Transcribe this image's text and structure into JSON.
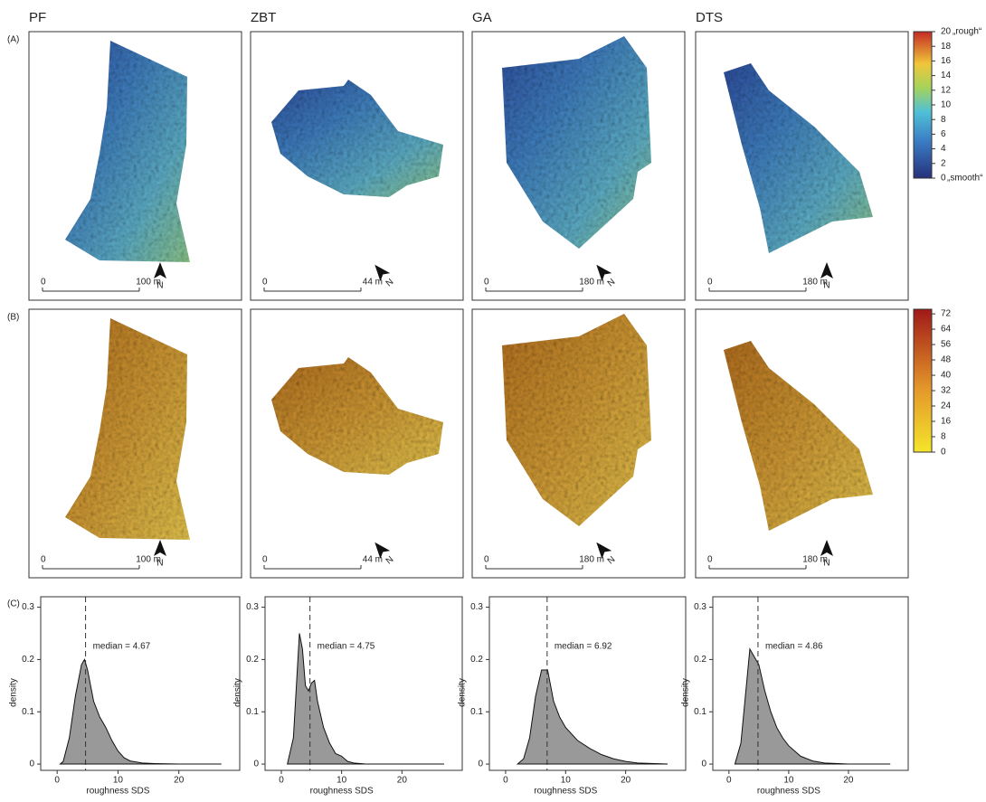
{
  "panel_labels": [
    "(A)",
    "(B)",
    "(C)"
  ],
  "columns": [
    {
      "title": "PF",
      "scale_length": "100 m"
    },
    {
      "title": "ZBT",
      "scale_length": "44 m"
    },
    {
      "title": "GA",
      "scale_length": "180 m"
    },
    {
      "title": "DTS",
      "scale_length": "180 m"
    }
  ],
  "scale_zero": "0",
  "north": "N",
  "colorbars": [
    {
      "lim": [
        0,
        20
      ],
      "ticks": [
        0,
        2,
        4,
        6,
        8,
        10,
        12,
        14,
        16,
        18,
        20
      ],
      "top_label": "„rough“",
      "bottom_label": "„smooth“"
    },
    {
      "lim": [
        0,
        74.4
      ],
      "ticks": [
        0,
        8,
        16,
        24,
        32,
        40,
        48,
        56,
        64,
        72
      ]
    }
  ],
  "chart_data": [
    {
      "type": "area",
      "color": "#999999",
      "xlim": [
        -2.7,
        30
      ],
      "ylim": [
        -0.012,
        0.32
      ],
      "xticks": [
        0,
        10,
        20
      ],
      "yticks": [
        0,
        0.1,
        0.2,
        0.3
      ],
      "xlabel": "roughness SDS",
      "ylabel": "density",
      "median": 4.67,
      "median_label": "median = 4.67",
      "x": [
        0.5,
        1,
        2,
        3,
        4,
        4.5,
        5,
        6,
        7,
        8,
        9,
        10,
        11,
        12,
        14,
        16,
        20,
        27
      ],
      "values": [
        0,
        0.005,
        0.05,
        0.13,
        0.19,
        0.2,
        0.18,
        0.12,
        0.09,
        0.07,
        0.045,
        0.025,
        0.012,
        0.006,
        0.002,
        0.001,
        0,
        0
      ]
    },
    {
      "type": "area",
      "color": "#999999",
      "xlim": [
        -2.7,
        30
      ],
      "ylim": [
        -0.012,
        0.32
      ],
      "xticks": [
        0,
        10,
        20
      ],
      "yticks": [
        0,
        0.1,
        0.2,
        0.3
      ],
      "xlabel": "roughness SDS",
      "ylabel": "density",
      "median": 4.75,
      "median_label": "median = 4.75",
      "x": [
        1,
        2,
        2.5,
        3,
        3.5,
        4,
        4.5,
        5,
        5.5,
        6,
        7,
        8,
        9,
        10,
        11,
        12,
        14,
        27
      ],
      "values": [
        0,
        0.05,
        0.15,
        0.25,
        0.22,
        0.15,
        0.14,
        0.155,
        0.16,
        0.12,
        0.07,
        0.04,
        0.02,
        0.015,
        0.005,
        0.002,
        0,
        0
      ]
    },
    {
      "type": "area",
      "color": "#999999",
      "xlim": [
        -2.7,
        30
      ],
      "ylim": [
        -0.012,
        0.32
      ],
      "xticks": [
        0,
        10,
        20
      ],
      "yticks": [
        0,
        0.1,
        0.2,
        0.3
      ],
      "xlabel": "roughness SDS",
      "ylabel": "density",
      "median": 6.92,
      "median_label": "median = 6.92",
      "x": [
        2,
        3,
        4,
        5,
        6,
        7,
        7.5,
        8,
        9,
        10,
        12,
        14,
        16,
        18,
        20,
        22,
        27
      ],
      "values": [
        0,
        0.01,
        0.05,
        0.13,
        0.18,
        0.18,
        0.15,
        0.12,
        0.09,
        0.07,
        0.045,
        0.03,
        0.018,
        0.01,
        0.005,
        0.002,
        0
      ]
    },
    {
      "type": "area",
      "color": "#999999",
      "xlim": [
        -2.7,
        30
      ],
      "ylim": [
        -0.012,
        0.32
      ],
      "xticks": [
        0,
        10,
        20
      ],
      "yticks": [
        0,
        0.1,
        0.2,
        0.3
      ],
      "xlabel": "roughness SDS",
      "ylabel": "density",
      "median": 4.86,
      "median_label": "median = 4.86",
      "x": [
        1,
        2,
        3,
        3.5,
        4,
        5,
        6,
        7,
        8,
        9,
        10,
        12,
        14,
        16,
        20,
        27
      ],
      "values": [
        0,
        0.04,
        0.16,
        0.22,
        0.21,
        0.19,
        0.14,
        0.1,
        0.07,
        0.05,
        0.035,
        0.015,
        0.006,
        0.002,
        0,
        0
      ]
    }
  ]
}
